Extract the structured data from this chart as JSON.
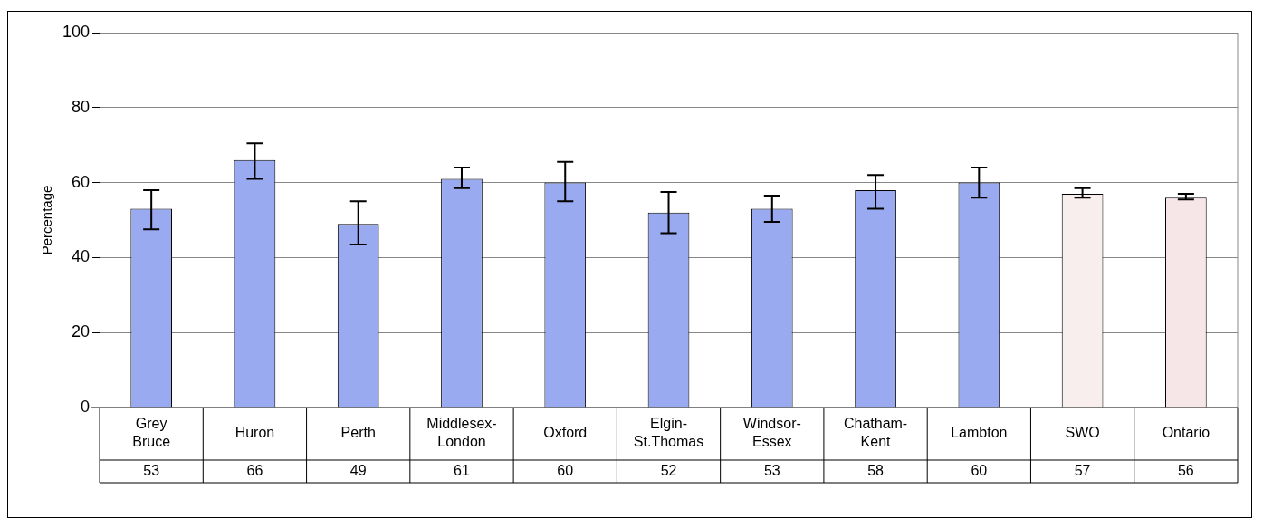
{
  "chart_data": {
    "type": "bar",
    "ylabel": "Percentage",
    "categories": [
      "Grey Bruce",
      "Huron",
      "Perth",
      "Middlesex-London",
      "Oxford",
      "Elgin-St.Thomas",
      "Windsor-Essex",
      "Chatham-Kent",
      "Lambton",
      "SWO",
      "Ontario"
    ],
    "values": [
      53,
      66,
      49,
      61,
      60,
      52,
      53,
      58,
      60,
      57,
      56
    ],
    "colors": [
      "#9aaaf0",
      "#9aaaf0",
      "#9aaaf0",
      "#9aaaf0",
      "#9aaaf0",
      "#9aaaf0",
      "#9aaaf0",
      "#9aaaf0",
      "#9aaaf0",
      "#f8eeee",
      "#f6e6e8"
    ],
    "errors": [
      [
        47.5,
        58
      ],
      [
        61,
        70.5
      ],
      [
        43.5,
        55
      ],
      [
        58.5,
        64
      ],
      [
        55,
        65.5
      ],
      [
        46.5,
        57.5
      ],
      [
        49.5,
        56.5
      ],
      [
        53,
        62
      ],
      [
        56,
        64
      ],
      [
        56,
        58.5
      ],
      [
        55.5,
        57
      ]
    ],
    "ylim": [
      0,
      100
    ],
    "yticks": [
      0,
      20,
      40,
      60,
      80,
      100
    ],
    "grid": "y",
    "data_labels": true
  }
}
